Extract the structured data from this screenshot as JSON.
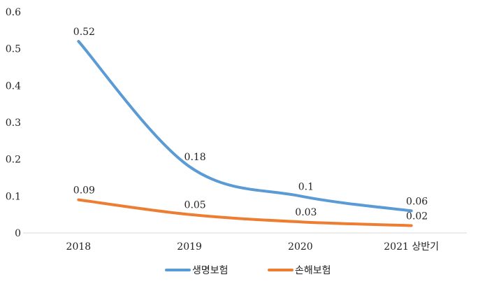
{
  "chart_data": {
    "type": "line",
    "title": "",
    "xlabel": "",
    "ylabel": "",
    "categories": [
      "2018",
      "2019",
      "2020",
      "2021 상반기"
    ],
    "ylim": [
      0,
      0.6
    ],
    "yticks": [
      "0",
      "0.1",
      "0.2",
      "0.3",
      "0.4",
      "0.5",
      "0.6"
    ],
    "grid": false,
    "legend_position": "bottom",
    "series": [
      {
        "name": "생명보험",
        "values": [
          0.52,
          0.18,
          0.1,
          0.06
        ],
        "labels": [
          "0.52",
          "0.18",
          "0.1",
          "0.06"
        ],
        "color": "#5B9BD5"
      },
      {
        "name": "손해보험",
        "values": [
          0.09,
          0.05,
          0.03,
          0.02
        ],
        "labels": [
          "0.09",
          "0.05",
          "0.03",
          "0.02"
        ],
        "color": "#ED7D31"
      }
    ]
  }
}
